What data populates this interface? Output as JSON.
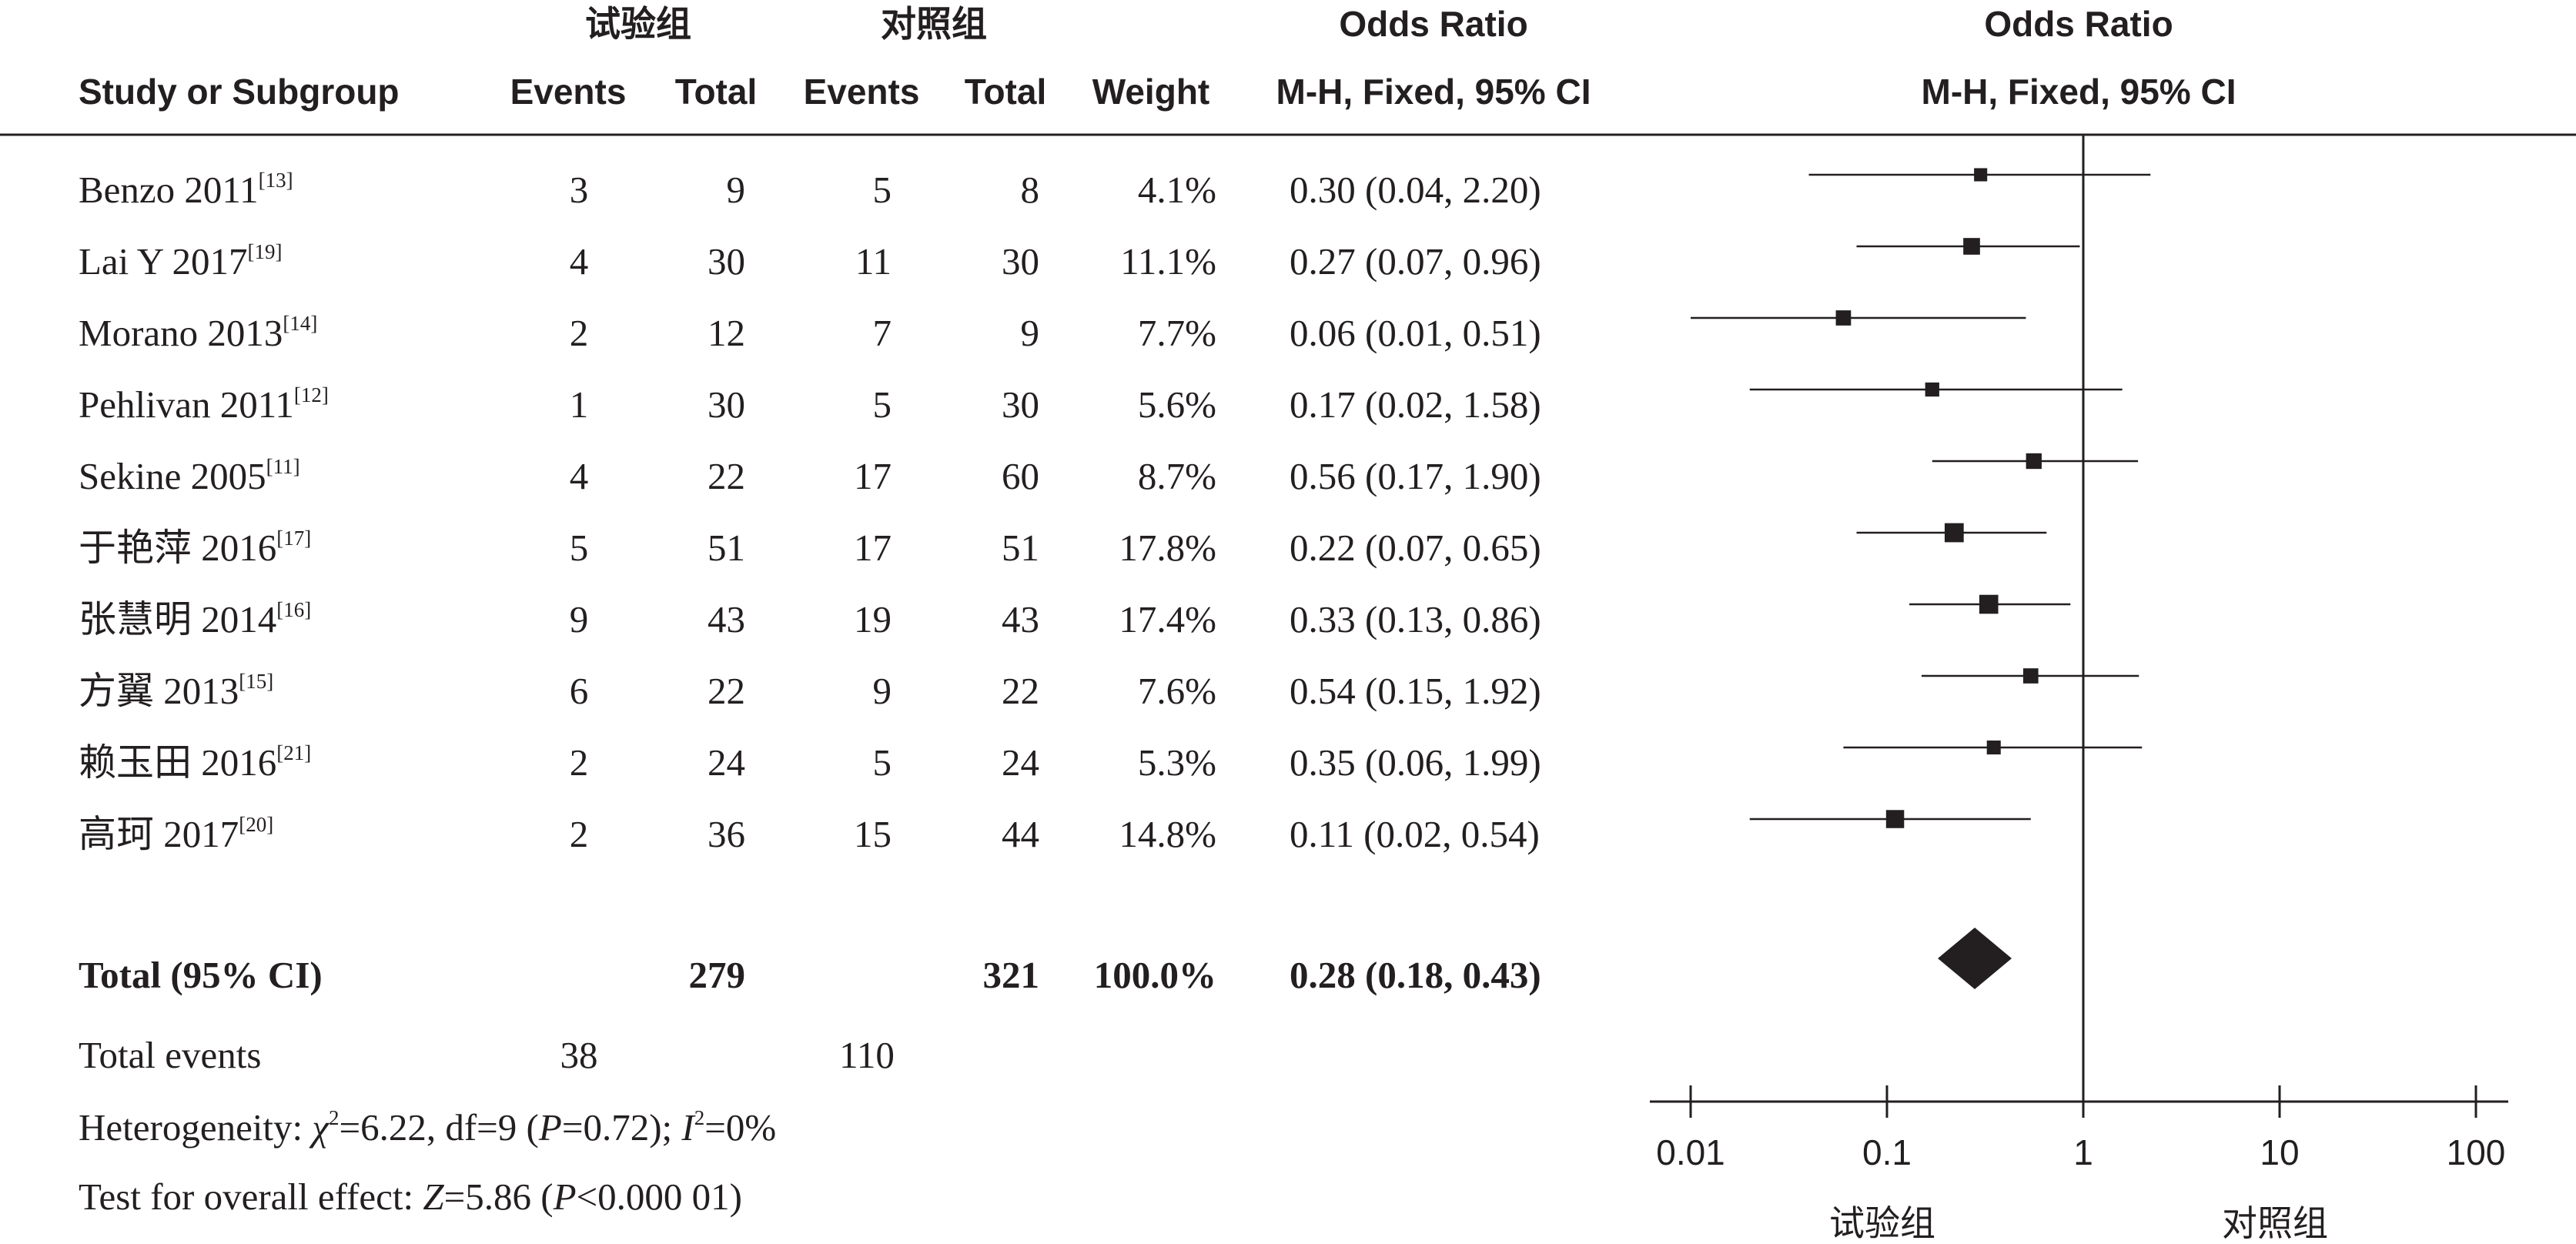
{
  "header": {
    "group_exp": "试验组",
    "group_ctrl": "对照组",
    "odds_ratio_1": "Odds Ratio",
    "odds_ratio_2": "Odds Ratio",
    "study": "Study or Subgroup",
    "events_exp": "Events",
    "total_exp": "Total",
    "events_ctrl": "Events",
    "total_ctrl": "Total",
    "weight": "Weight",
    "method_1": "M-H, Fixed, 95% CI",
    "method_2": "M-H, Fixed, 95% CI"
  },
  "chart_data": {
    "type": "forest",
    "scale": "log",
    "xlim": [
      0.01,
      100
    ],
    "ticks": [
      "0.01",
      "0.1",
      "1",
      "10",
      "100"
    ],
    "tick_values": [
      0.01,
      0.1,
      1,
      10,
      100
    ],
    "null_line": 1,
    "favours_left": "试验组",
    "favours_right": "对照组",
    "studies": [
      {
        "name": "Benzo 2011",
        "ref": "[13]",
        "e_events": "3",
        "e_total": "9",
        "c_events": "5",
        "c_total": "8",
        "weight": "4.1%",
        "ci_text": "0.30 (0.04, 2.20)",
        "or": 0.3,
        "lo": 0.04,
        "hi": 2.2,
        "w": 4.1
      },
      {
        "name": "Lai Y 2017",
        "ref": "[19]",
        "e_events": "4",
        "e_total": "30",
        "c_events": "11",
        "c_total": "30",
        "weight": "11.1%",
        "ci_text": "0.27 (0.07, 0.96)",
        "or": 0.27,
        "lo": 0.07,
        "hi": 0.96,
        "w": 11.1
      },
      {
        "name": "Morano 2013",
        "ref": "[14]",
        "e_events": "2",
        "e_total": "12",
        "c_events": "7",
        "c_total": "9",
        "weight": "7.7%",
        "ci_text": "0.06 (0.01, 0.51)",
        "or": 0.06,
        "lo": 0.01,
        "hi": 0.51,
        "w": 7.7
      },
      {
        "name": "Pehlivan 2011",
        "ref": "[12]",
        "e_events": "1",
        "e_total": "30",
        "c_events": "5",
        "c_total": "30",
        "weight": "5.6%",
        "ci_text": "0.17 (0.02, 1.58)",
        "or": 0.17,
        "lo": 0.02,
        "hi": 1.58,
        "w": 5.6
      },
      {
        "name": "Sekine 2005",
        "ref": "[11]",
        "e_events": "4",
        "e_total": "22",
        "c_events": "17",
        "c_total": "60",
        "weight": "8.7%",
        "ci_text": "0.56 (0.17, 1.90)",
        "or": 0.56,
        "lo": 0.17,
        "hi": 1.9,
        "w": 8.7
      },
      {
        "name": "于艳萍 2016",
        "ref": "[17]",
        "e_events": "5",
        "e_total": "51",
        "c_events": "17",
        "c_total": "51",
        "weight": "17.8%",
        "ci_text": "0.22 (0.07, 0.65)",
        "or": 0.22,
        "lo": 0.07,
        "hi": 0.65,
        "w": 17.8
      },
      {
        "name": "张慧明 2014",
        "ref": "[16]",
        "e_events": "9",
        "e_total": "43",
        "c_events": "19",
        "c_total": "43",
        "weight": "17.4%",
        "ci_text": "0.33 (0.13, 0.86)",
        "or": 0.33,
        "lo": 0.13,
        "hi": 0.86,
        "w": 17.4
      },
      {
        "name": "方翼 2013",
        "ref": "[15]",
        "e_events": "6",
        "e_total": "22",
        "c_events": "9",
        "c_total": "22",
        "weight": "7.6%",
        "ci_text": "0.54 (0.15, 1.92)",
        "or": 0.54,
        "lo": 0.15,
        "hi": 1.92,
        "w": 7.6
      },
      {
        "name": "赖玉田 2016",
        "ref": "[21]",
        "e_events": "2",
        "e_total": "24",
        "c_events": "5",
        "c_total": "24",
        "weight": "5.3%",
        "ci_text": "0.35 (0.06, 1.99)",
        "or": 0.35,
        "lo": 0.06,
        "hi": 1.99,
        "w": 5.3
      },
      {
        "name": "高珂 2017",
        "ref": "[20]",
        "e_events": "2",
        "e_total": "36",
        "c_events": "15",
        "c_total": "44",
        "weight": "14.8%",
        "ci_text": "0.11 (0.02, 0.54)",
        "or": 0.11,
        "lo": 0.02,
        "hi": 0.54,
        "w": 14.8
      }
    ],
    "total": {
      "label": "Total (95% CI)",
      "e_total": "279",
      "c_total": "321",
      "weight": "100.0%",
      "ci_text": "0.28 (0.18, 0.43)",
      "or": 0.28,
      "lo": 0.18,
      "hi": 0.43
    },
    "total_events": {
      "label": "Total events",
      "e_events": "38",
      "c_events": "110"
    },
    "heterogeneity": {
      "prefix": "Heterogeneity: ",
      "chi_sym": "χ",
      "chi_sup": "2",
      "chi_val": "=6.22, df=9 (",
      "p_sym": "P",
      "p_val": "=0.72); ",
      "i_sym": "I",
      "i_sup": "2",
      "i_val": "=0%"
    },
    "overall": {
      "prefix": "Test for overall effect: ",
      "z_sym": "Z",
      "z_val": "=5.86 (",
      "p_sym": "P",
      "p_val": "<0.000 01)"
    }
  }
}
